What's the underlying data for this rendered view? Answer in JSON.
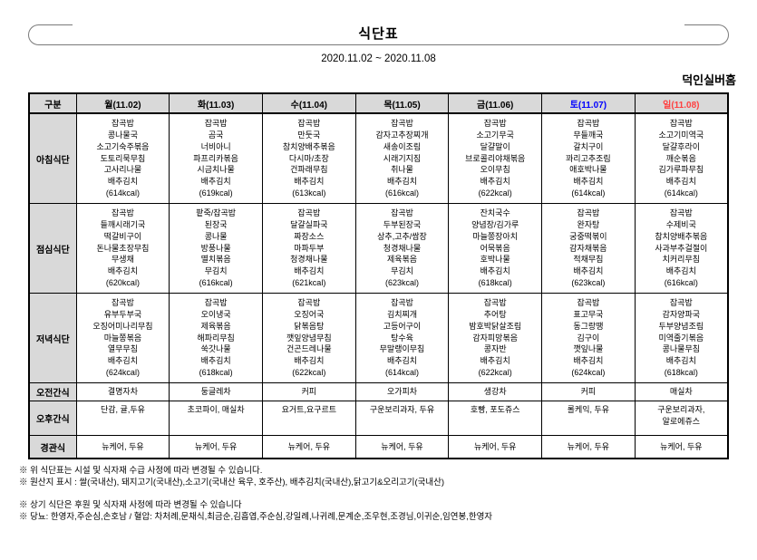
{
  "title": "식단표",
  "date_range": "2020.11.02 ~ 2020.11.08",
  "facility": "덕인실버홈",
  "colors": {
    "saturday": "#0000ff",
    "sunday": "#ff4040",
    "header_bg": "#d9d9d9"
  },
  "table": {
    "corner_label": "구분",
    "day_headers": [
      "월(11.02)",
      "화(11.03)",
      "수(11.04)",
      "목(11.05)",
      "금(11.06)",
      "토(11.07)",
      "일(11.08)"
    ],
    "rows": [
      {
        "label": "아침식단",
        "cells": [
          [
            "잡곡밥",
            "콩나물국",
            "소고기숙주볶음",
            "도토리묵무침",
            "고사리나물",
            "배추김치",
            "(614kcal)"
          ],
          [
            "잡곡밥",
            "곰국",
            "너비아니",
            "파프리카볶음",
            "시금치나물",
            "배추김치",
            "(619kcal)"
          ],
          [
            "잡곡밥",
            "만둣국",
            "참치양배추볶음",
            "다시마/초장",
            "건파래무침",
            "배추김치",
            "(613kcal)"
          ],
          [
            "잡곡밥",
            "감자고추장찌개",
            "새송이조림",
            "시래기지짐",
            "취나물",
            "배추김치",
            "(616kcal)"
          ],
          [
            "잡곡밥",
            "소고기무국",
            "달걀말이",
            "브로콜리야채볶음",
            "오이무침",
            "배추김치",
            "(622kcal)"
          ],
          [
            "잡곡밥",
            "무들깨국",
            "갈치구이",
            "꽈리고추조림",
            "애호박나물",
            "배추김치",
            "(614kcal)"
          ],
          [
            "잡곡밥",
            "소고기미역국",
            "달걀후라이",
            "깨순볶음",
            "김가루파무침",
            "배추김치",
            "(614kcal)"
          ]
        ]
      },
      {
        "label": "점심식단",
        "cells": [
          [
            "잡곡밥",
            "들깨시래기국",
            "떡갈비구이",
            "돈나물초장무침",
            "무생채",
            "배추김치",
            "(620kcal)"
          ],
          [
            "팥죽/잡곡밥",
            "된장국",
            "콩나물",
            "방풍나물",
            "멸치볶음",
            "무김치",
            "(616kcal)"
          ],
          [
            "잡곡밥",
            "달걀실파국",
            "짜장소스",
            "마파두부",
            "청경채나물",
            "배추김치",
            "(621kcal)"
          ],
          [
            "잡곡밥",
            "두부된장국",
            "상추,고추/쌈장",
            "청경채나물",
            "제육볶음",
            "무김치",
            "(623kcal)"
          ],
          [
            "잔치국수",
            "양념장/김가루",
            "마늘쫑장아치",
            "어묵볶음",
            "호박나물",
            "배추김치",
            "(618kcal)"
          ],
          [
            "잡곡밥",
            "완자탕",
            "궁중떡볶이",
            "감자채볶음",
            "적채무침",
            "배추김치",
            "(623kcal)"
          ],
          [
            "잡곡밥",
            "수제비국",
            "참치양배추볶음",
            "사과부추걸절이",
            "치커리무침",
            "배추김치",
            "(616kcal)"
          ]
        ]
      },
      {
        "label": "저녁식단",
        "cells": [
          [
            "잡곡밥",
            "유부두부국",
            "오징어미나리무침",
            "마늘쫑볶음",
            "열무무침",
            "배추김치",
            "(624kcal)"
          ],
          [
            "잡곡밥",
            "오이냉국",
            "제육볶음",
            "해파리무침",
            "쑥갓나물",
            "배추김치",
            "(618kcal)"
          ],
          [
            "잡곡밥",
            "오징어국",
            "닭볶음탕",
            "깻잎양념무침",
            "건곤드레나물",
            "배추김치",
            "(622kcal)"
          ],
          [
            "잡곡밥",
            "김치찌개",
            "고등어구이",
            "탕수육",
            "무말랭이무침",
            "배추김치",
            "(614kcal)"
          ],
          [
            "잡곡밥",
            "추어탕",
            "밤호박닭살조림",
            "감자피망볶음",
            "콩자반",
            "배추김치",
            "(622kcal)"
          ],
          [
            "잡곡밥",
            "표고무국",
            "동그랑땡",
            "김구이",
            "깻잎나물",
            "배추김치",
            "(624kcal)"
          ],
          [
            "잡곡밥",
            "감자양파국",
            "두부양념조림",
            "미역줄기볶음",
            "콩나물무침",
            "배추김치",
            "(618kcal)"
          ]
        ]
      },
      {
        "label": "오전간식",
        "cells": [
          [
            "결명자차"
          ],
          [
            "둥글레차"
          ],
          [
            "커피"
          ],
          [
            "오가피차"
          ],
          [
            "생강차"
          ],
          [
            "커피"
          ],
          [
            "매실차"
          ]
        ]
      },
      {
        "label": "오후간식",
        "cells": [
          [
            "단감, 귤,두유"
          ],
          [
            "초코파이, 매실차"
          ],
          [
            "요거트,요구르트"
          ],
          [
            "구운보리과자, 두유"
          ],
          [
            "호빵, 포도쥬스"
          ],
          [
            "롤케익, 두유"
          ],
          [
            "구운보리과자,",
            "알로에쥬스"
          ]
        ]
      },
      {
        "label": "경관식",
        "cells": [
          [
            "뉴케어, 두유"
          ],
          [
            "뉴케어, 두유"
          ],
          [
            "뉴케어, 두유"
          ],
          [
            "뉴케어, 두유"
          ],
          [
            "뉴케어, 두유"
          ],
          [
            "뉴케어, 두유"
          ],
          [
            "뉴케어, 두유"
          ]
        ]
      }
    ]
  },
  "notes": [
    "※ 위 식단표는 시설 및 식자재 수급 사정에 따라 변경될 수 있습니다.",
    "※ 원산지 표시 : 쌀(국내산), 돼지고기(국내산),소고기(국내산 육우, 호주산), 배추김치(국내산),닭고기&오리고기(국내산)",
    "※ 상기 식단은 후원 및 식자재 사정에 따라 변경될 수 있습니다",
    "※ 당뇨: 한영자,주순심,손호남 / 혈압: 차처례,문채식,최금순,김흠엽,주순심,강일례,나귀례,문계순,조우현,조경님,이귀순,임연봉,한영자"
  ]
}
